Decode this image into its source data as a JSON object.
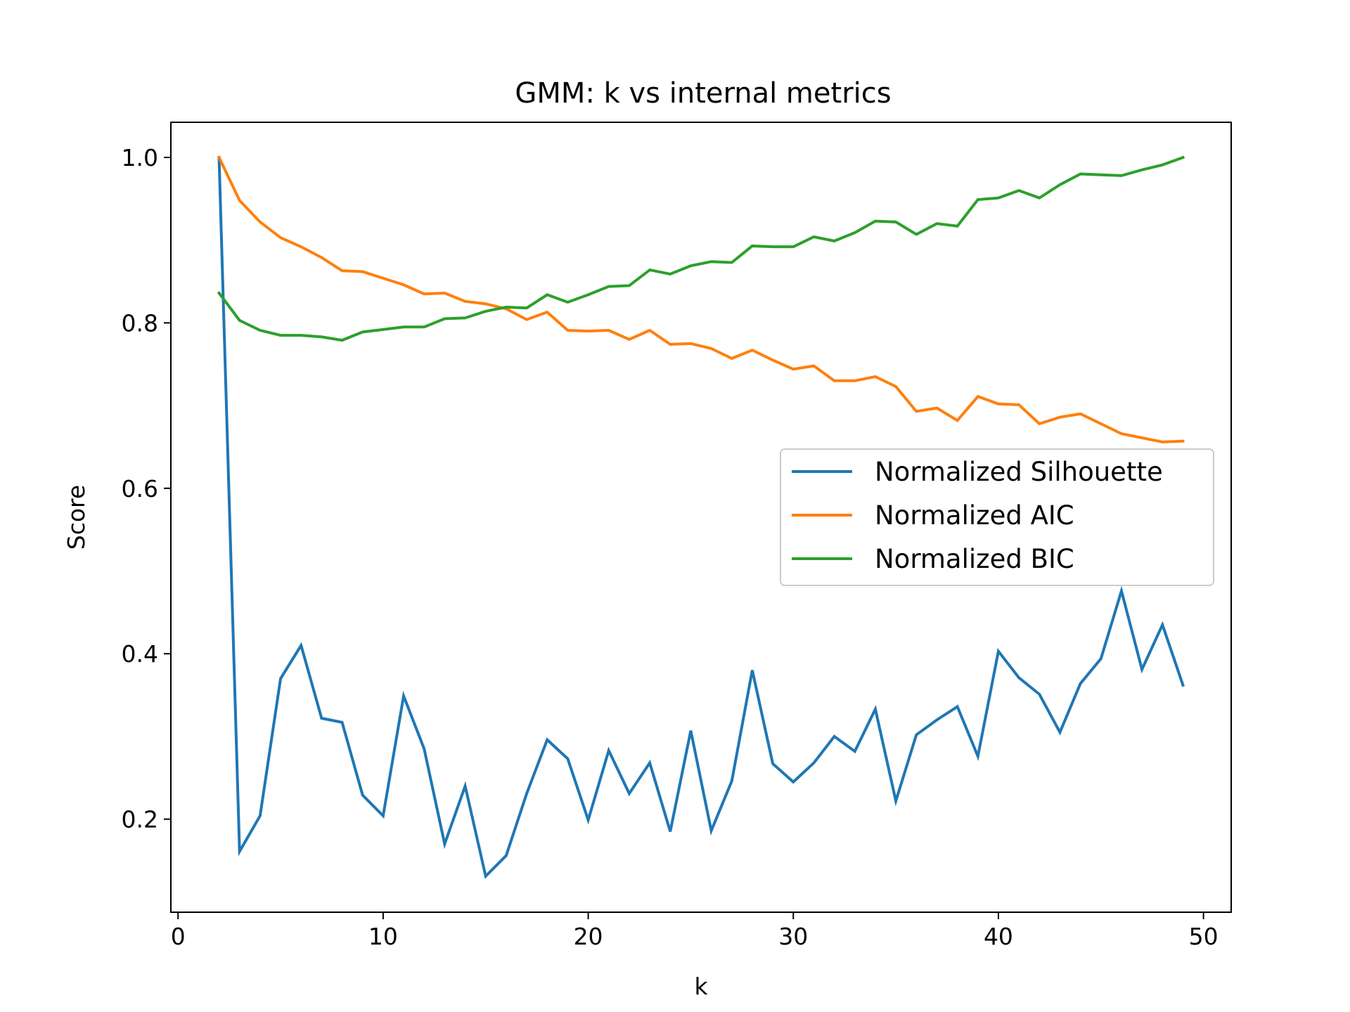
{
  "chart_data": {
    "type": "line",
    "title": "GMM: k vs internal metrics",
    "xlabel": "k",
    "ylabel": "Score",
    "xlim": [
      -0.35,
      51.35
    ],
    "ylim": [
      0.0875,
      1.0425
    ],
    "xticks": [
      0,
      10,
      20,
      30,
      40,
      50
    ],
    "yticks": [
      0.2,
      0.4,
      0.6,
      0.8,
      1.0
    ],
    "xtick_labels": [
      "0",
      "10",
      "20",
      "30",
      "40",
      "50"
    ],
    "ytick_labels": [
      "0.2",
      "0.4",
      "0.6",
      "0.8",
      "1.0"
    ],
    "grid": false,
    "legend_position": "center-right",
    "x": [
      2,
      3,
      4,
      5,
      6,
      7,
      8,
      9,
      10,
      11,
      12,
      13,
      14,
      15,
      16,
      17,
      18,
      19,
      20,
      21,
      22,
      23,
      24,
      25,
      26,
      27,
      28,
      29,
      30,
      31,
      32,
      33,
      34,
      35,
      36,
      37,
      38,
      39,
      40,
      41,
      42,
      43,
      44,
      45,
      46,
      47,
      48,
      49
    ],
    "series": [
      {
        "name": "Normalized Silhouette",
        "color": "#1f77b4",
        "values": [
          1.0,
          0.161,
          0.204,
          0.37,
          0.41,
          0.322,
          0.317,
          0.229,
          0.204,
          0.349,
          0.285,
          0.17,
          0.24,
          0.131,
          0.156,
          0.231,
          0.296,
          0.273,
          0.199,
          0.283,
          0.231,
          0.268,
          0.185,
          0.307,
          0.186,
          0.246,
          0.38,
          0.267,
          0.245,
          0.268,
          0.3,
          0.282,
          0.333,
          0.222,
          0.302,
          0.32,
          0.336,
          0.276,
          0.403,
          0.371,
          0.351,
          0.305,
          0.364,
          0.394,
          0.476,
          0.381,
          0.435,
          0.362
        ]
      },
      {
        "name": "Normalized AIC",
        "color": "#ff7f0e",
        "values": [
          1.0,
          0.948,
          0.922,
          0.903,
          0.892,
          0.879,
          0.863,
          0.862,
          0.854,
          0.846,
          0.835,
          0.836,
          0.826,
          0.823,
          0.817,
          0.804,
          0.813,
          0.791,
          0.79,
          0.791,
          0.78,
          0.791,
          0.774,
          0.775,
          0.769,
          0.757,
          0.767,
          0.755,
          0.744,
          0.748,
          0.73,
          0.73,
          0.735,
          0.723,
          0.693,
          0.697,
          0.682,
          0.711,
          0.702,
          0.701,
          0.678,
          0.686,
          0.69,
          0.678,
          0.666,
          0.661,
          0.656,
          0.657
        ]
      },
      {
        "name": "Normalized BIC",
        "color": "#2ca02c",
        "values": [
          0.836,
          0.803,
          0.791,
          0.785,
          0.785,
          0.783,
          0.779,
          0.789,
          0.792,
          0.795,
          0.795,
          0.805,
          0.806,
          0.814,
          0.819,
          0.818,
          0.834,
          0.825,
          0.834,
          0.844,
          0.845,
          0.864,
          0.859,
          0.869,
          0.874,
          0.873,
          0.893,
          0.892,
          0.892,
          0.904,
          0.899,
          0.909,
          0.923,
          0.922,
          0.907,
          0.92,
          0.917,
          0.949,
          0.951,
          0.96,
          0.951,
          0.967,
          0.98,
          0.979,
          0.978,
          0.985,
          0.991,
          1.0
        ]
      }
    ]
  }
}
